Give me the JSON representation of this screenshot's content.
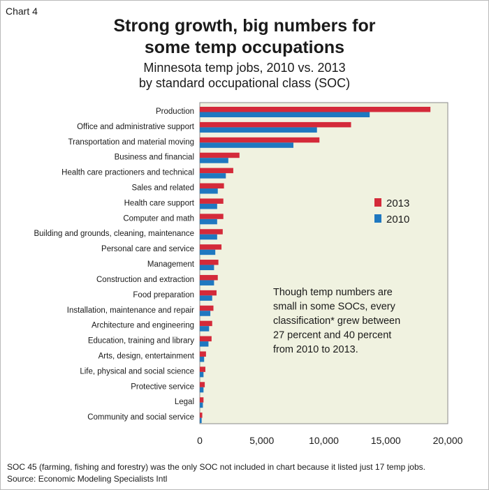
{
  "chart_label": "Chart 4",
  "title_lines": [
    "Strong growth, big numbers for",
    "some temp occupations"
  ],
  "subtitle_lines": [
    "Minnesota temp jobs, 2010 vs. 2013",
    "by standard occupational class (SOC)"
  ],
  "chart_data": {
    "type": "bar",
    "orientation": "horizontal",
    "categories": [
      "Production",
      "Office and administrative support",
      "Transportation and material moving",
      "Business and financial",
      "Health care practioners and technical",
      "Sales and related",
      "Health care support",
      "Computer and math",
      "Building and grounds, cleaning, maintenance",
      "Personal care and service",
      "Management",
      "Construction and extraction",
      "Food preparation",
      "Installation, maintenance and repair",
      "Architecture and engineering",
      "Education, training and library",
      "Arts, design, entertainment",
      "Life, physical and social science",
      "Protective service",
      "Legal",
      "Community and social service"
    ],
    "series": [
      {
        "name": "2013",
        "color": "#d42a3a",
        "values": [
          18600,
          12200,
          9650,
          3200,
          2700,
          1950,
          1900,
          1900,
          1850,
          1750,
          1500,
          1450,
          1350,
          1100,
          1000,
          950,
          500,
          450,
          400,
          300,
          200
        ]
      },
      {
        "name": "2010",
        "color": "#1f78c0",
        "values": [
          13700,
          9450,
          7550,
          2300,
          2100,
          1450,
          1400,
          1400,
          1400,
          1250,
          1150,
          1150,
          1000,
          850,
          750,
          700,
          350,
          300,
          300,
          250,
          150
        ]
      }
    ],
    "xlim": [
      0,
      20000
    ],
    "xticks": [
      0,
      5000,
      10000,
      15000,
      20000
    ],
    "xtick_labels": [
      "0",
      "5,000",
      "10,000",
      "15,000",
      "20,000"
    ],
    "plot_background": "#f0f2e0",
    "legend_position": "right"
  },
  "annotation_lines": [
    "Though temp numbers are",
    "small in some SOCs, every",
    "classification* grew between",
    "27 percent and 40 percent",
    "from 2010 to 2013."
  ],
  "footnote_lines": [
    "SOC 45 (farming, fishing and forestry) was  the only SOC not included in chart because it listed just 17 temp jobs.",
    "Source: Economic Modeling Specialists Intl"
  ]
}
